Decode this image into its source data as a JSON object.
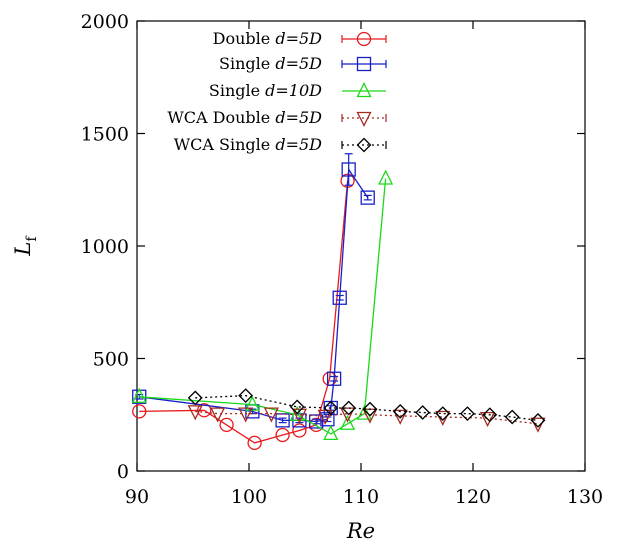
{
  "chart_data": {
    "type": "line",
    "xlabel": "Re",
    "ylabel": "L",
    "ylabel_subscript": "f",
    "xlim": [
      90,
      130
    ],
    "ylim": [
      0,
      2000
    ],
    "xticks": [
      90,
      100,
      110,
      120,
      130
    ],
    "yticks": [
      0,
      500,
      1000,
      1500,
      2000
    ],
    "grid": false,
    "legend_position": "top-right",
    "series": [
      {
        "name": "Double",
        "name_italic": "d=5D",
        "color": "#e8191b",
        "marker": "circle",
        "dash": "solid",
        "errorbars": true,
        "x": [
          90.2,
          96.0,
          98.0,
          100.5,
          103.0,
          104.5,
          106.0,
          107.2,
          108.8
        ],
        "y": [
          265,
          270,
          205,
          125,
          160,
          180,
          205,
          410,
          1290
        ]
      },
      {
        "name": "Single",
        "name_italic": "d=5D",
        "color": "#1520c8",
        "marker": "square",
        "dash": "solid",
        "errorbars": true,
        "x": [
          90.2,
          100.3,
          103.0,
          104.5,
          106.0,
          107.0,
          107.3,
          107.6,
          108.1,
          108.9,
          110.6
        ],
        "y": [
          330,
          265,
          225,
          225,
          220,
          230,
          280,
          410,
          770,
          1340,
          1215
        ],
        "yerr": [
          10,
          10,
          10,
          10,
          10,
          10,
          10,
          10,
          10,
          70,
          10
        ]
      },
      {
        "name": "Single",
        "name_italic": "d=10D",
        "color": "#1ad91a",
        "marker": "triangle-up",
        "dash": "solid",
        "errorbars": false,
        "x": [
          90.2,
          100.3,
          104.3,
          107.3,
          108.8,
          110.3,
          112.2
        ],
        "y": [
          330,
          295,
          250,
          165,
          210,
          255,
          1300
        ]
      },
      {
        "name": "WCA Double",
        "name_italic": "d=5D",
        "color": "#a3281e",
        "marker": "triangle-down",
        "dash": "dotted",
        "errorbars": true,
        "x": [
          95.2,
          97.2,
          99.7,
          102.0,
          104.5,
          106.8,
          108.8,
          110.8,
          113.5,
          117.3,
          121.3,
          125.8
        ],
        "y": [
          265,
          255,
          255,
          255,
          250,
          245,
          255,
          250,
          245,
          240,
          235,
          210
        ]
      },
      {
        "name": "WCA Single",
        "name_italic": "d=5D",
        "color": "#000000",
        "marker": "diamond",
        "dash": "dotted",
        "errorbars": true,
        "x": [
          95.2,
          99.7,
          104.3,
          107.3,
          108.9,
          110.8,
          113.5,
          115.5,
          117.3,
          119.5,
          121.5,
          123.5,
          125.8
        ],
        "y": [
          325,
          335,
          285,
          280,
          280,
          275,
          265,
          260,
          255,
          255,
          250,
          240,
          225
        ]
      }
    ]
  }
}
